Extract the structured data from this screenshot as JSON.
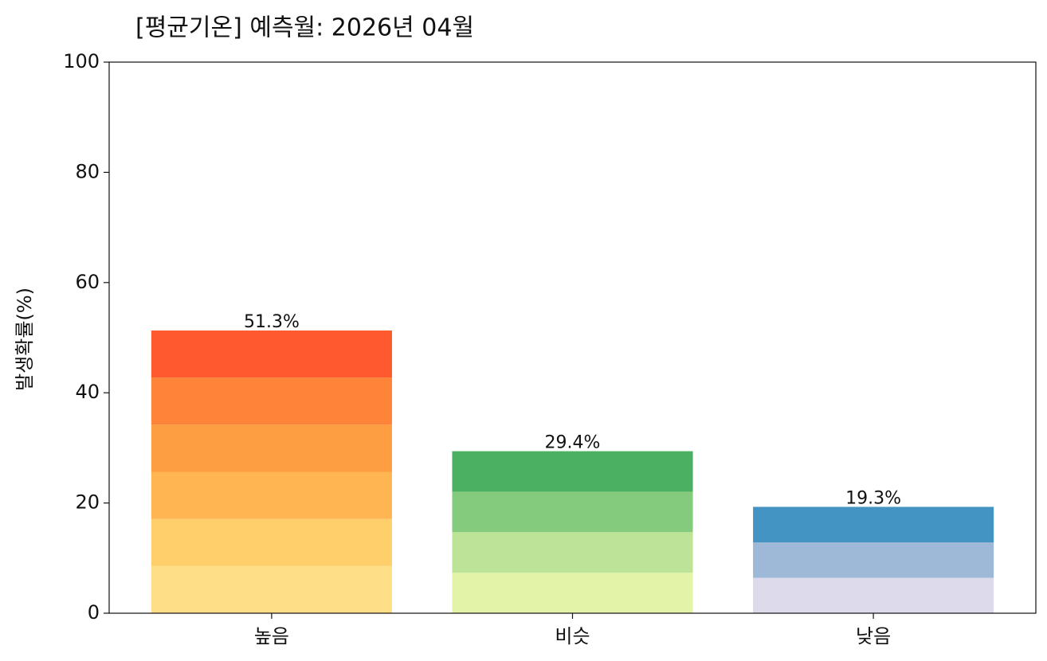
{
  "chart_data": {
    "type": "stacked_bar",
    "title": "[평균기온] 예측월: 2026년 04월",
    "ylabel": "발생확률(%)",
    "categories": [
      "높음",
      "비슷",
      "낮음"
    ],
    "totals": [
      51.3,
      29.4,
      19.3
    ],
    "value_labels": [
      "51.3%",
      "29.4%",
      "19.3%"
    ],
    "segments": [
      [
        {
          "value": 8.55,
          "color": "#fedf87"
        },
        {
          "value": 8.55,
          "color": "#fecf6a"
        },
        {
          "value": 8.55,
          "color": "#feb552"
        },
        {
          "value": 8.55,
          "color": "#fd9e43"
        },
        {
          "value": 8.55,
          "color": "#fd8438"
        },
        {
          "value": 8.55,
          "color": "#fe5a2e"
        }
      ],
      [
        {
          "value": 7.35,
          "color": "#e3f4a8"
        },
        {
          "value": 7.35,
          "color": "#bde496"
        },
        {
          "value": 7.35,
          "color": "#85cb7d"
        },
        {
          "value": 7.35,
          "color": "#4bb062"
        }
      ],
      [
        {
          "value": 6.43,
          "color": "#dcdaeb"
        },
        {
          "value": 6.43,
          "color": "#9eb9d7"
        },
        {
          "value": 6.44,
          "color": "#4394c3"
        }
      ]
    ],
    "ylim": [
      0,
      100
    ],
    "yticks": [
      0,
      20,
      40,
      60,
      80,
      100
    ]
  }
}
